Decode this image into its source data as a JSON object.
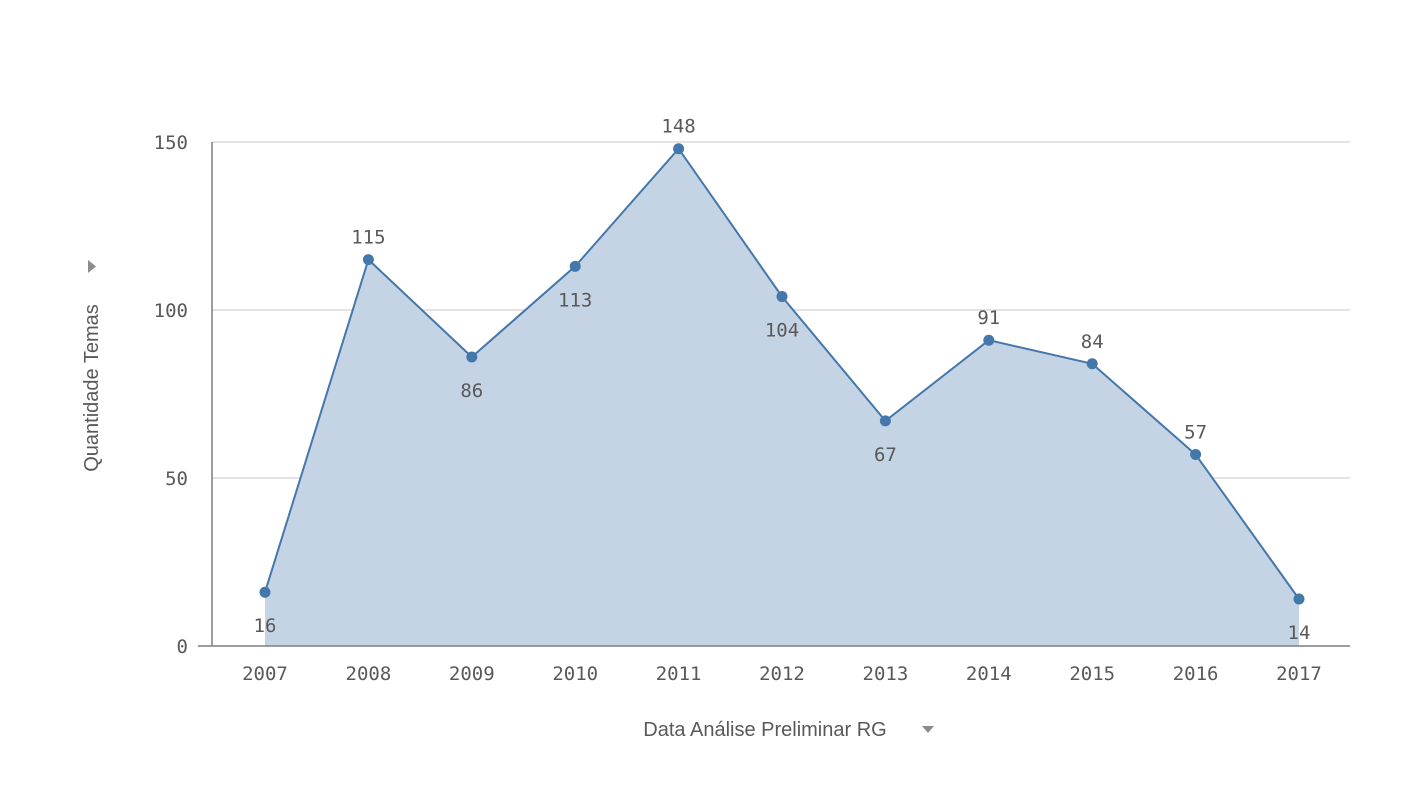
{
  "chart_data": {
    "type": "area",
    "categories": [
      "2007",
      "2008",
      "2009",
      "2010",
      "2011",
      "2012",
      "2013",
      "2014",
      "2015",
      "2016",
      "2017"
    ],
    "series": [
      {
        "values": [
          16,
          115,
          86,
          113,
          148,
          104,
          67,
          91,
          84,
          57,
          14
        ]
      }
    ],
    "data_labels": [
      "16",
      "115",
      "86",
      "113",
      "148",
      "104",
      "67",
      "91",
      "84",
      "57",
      "14"
    ],
    "xlabel": "Data Análise Preliminar RG",
    "ylabel": "Quantidade Temas",
    "ylim": [
      0,
      150
    ],
    "y_ticks": [
      0,
      50,
      100,
      150
    ],
    "y_tick_labels": [
      "0",
      "50",
      "100",
      "150"
    ],
    "grid": true,
    "color": "#4477aa",
    "fill_color": "#c5d4e5",
    "axis_menu_icon": "triangle-down-icon"
  }
}
